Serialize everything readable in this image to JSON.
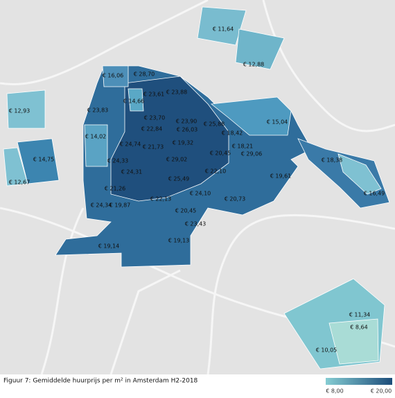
{
  "regions": [
    {
      "label": "€ 28,70"
    },
    {
      "label": "€ 16,06"
    },
    {
      "label": "€ 23,61"
    },
    {
      "label": "€ 23,88"
    },
    {
      "label": "€ 14,66"
    },
    {
      "label": "€ 23,83"
    },
    {
      "label": "€ 12,93"
    },
    {
      "label": "€ 11,64"
    },
    {
      "label": "€ 12,88"
    },
    {
      "label": "€ 23,70"
    },
    {
      "label": "€ 22,84"
    },
    {
      "label": "€ 23,90"
    },
    {
      "label": "€ 26,03"
    },
    {
      "label": "€ 25,88"
    },
    {
      "label": "€ 18,42"
    },
    {
      "label": "€ 15,04"
    },
    {
      "label": "€ 14,02"
    },
    {
      "label": "€ 24,74"
    },
    {
      "label": "€ 21,73"
    },
    {
      "label": "€ 19,32"
    },
    {
      "label": "€ 18,21"
    },
    {
      "label": "€ 14,75"
    },
    {
      "label": "€ 20,45"
    },
    {
      "label": "€ 29,06"
    },
    {
      "label": "€ 29,02"
    },
    {
      "label": "€ 18,38"
    },
    {
      "label": "€ 24,33"
    },
    {
      "label": "€ 24,31"
    },
    {
      "label": "€ 22,10"
    },
    {
      "label": "€ 12,67"
    },
    {
      "label": "€ 25,49"
    },
    {
      "label": "€ 19,61"
    },
    {
      "label": "€ 21,26"
    },
    {
      "label": "€ 24,10"
    },
    {
      "label": "€ 16,49"
    },
    {
      "label": "€ 20,73"
    },
    {
      "label": "€ 22,13"
    },
    {
      "label": "€ 24,34"
    },
    {
      "label": "€ 19,87"
    },
    {
      "label": "€ 20,45"
    },
    {
      "label": "€ 23,43"
    },
    {
      "label": "€ 19,14"
    },
    {
      "label": "€ 19,13"
    },
    {
      "label": "€ 11,34"
    },
    {
      "label": "€ 8,64"
    },
    {
      "label": "€ 10,05"
    }
  ],
  "caption": "Figuur 7: Gemiddelde huurprijs per m² in Amsterdam H2-2018",
  "legend": {
    "min_label": "€ 8,00",
    "max_label": "€ 20,00"
  }
}
